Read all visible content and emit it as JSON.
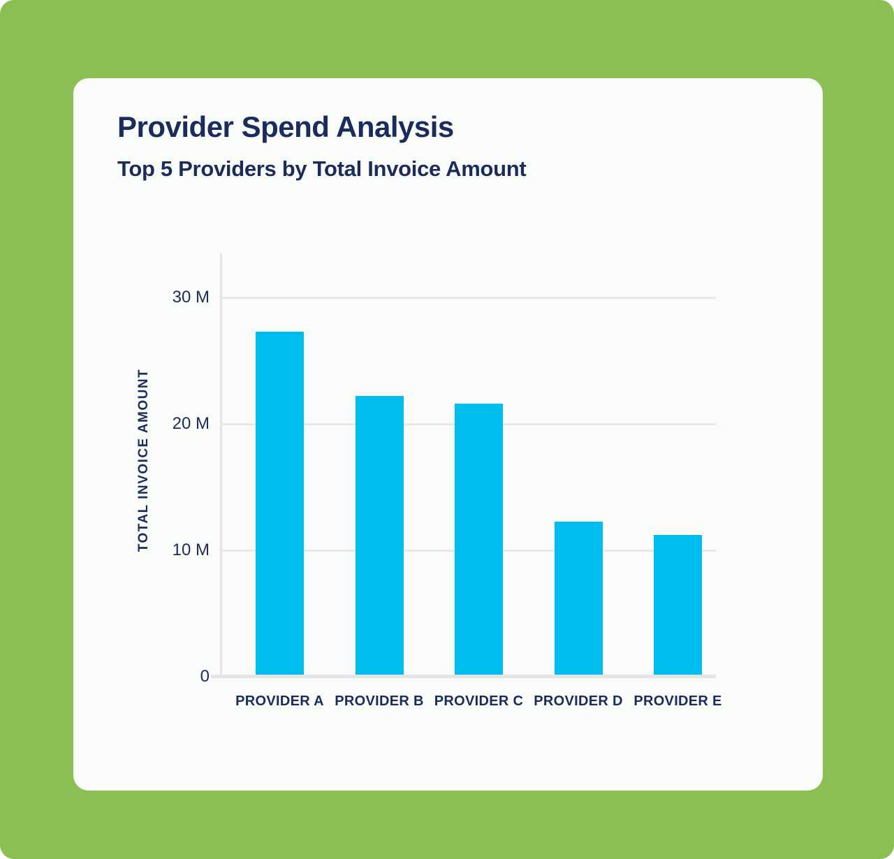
{
  "header": {
    "title": "Provider Spend Analysis",
    "subtitle": "Top 5 Providers by Total Invoice Amount"
  },
  "chart_data": {
    "type": "bar",
    "title": "Provider Spend Analysis",
    "subtitle": "Top 5 Providers by Total Invoice Amount",
    "categories": [
      "PROVIDER A",
      "PROVIDER B",
      "PROVIDER C",
      "PROVIDER D",
      "PROVIDER E"
    ],
    "values_millions": [
      27.3,
      22.2,
      21.6,
      12.3,
      11.2
    ],
    "xlabel": "",
    "ylabel": "TOTAL INVOICE AMOUNT",
    "ylim_millions": [
      0,
      33.5
    ],
    "yticks": [
      {
        "value": 0,
        "label": "0"
      },
      {
        "value": 10,
        "label": "10 M"
      },
      {
        "value": 20,
        "label": "20 M"
      },
      {
        "value": 30,
        "label": "30 M"
      }
    ],
    "grid": true,
    "legend": false,
    "colors": {
      "bar": "#00BDEF",
      "gridline": "#E6E8EC",
      "axis": "#E2E4E8",
      "text": "#1B2B5C",
      "card_background": "#FAFCFA",
      "page_background": "#8BBE55"
    }
  }
}
